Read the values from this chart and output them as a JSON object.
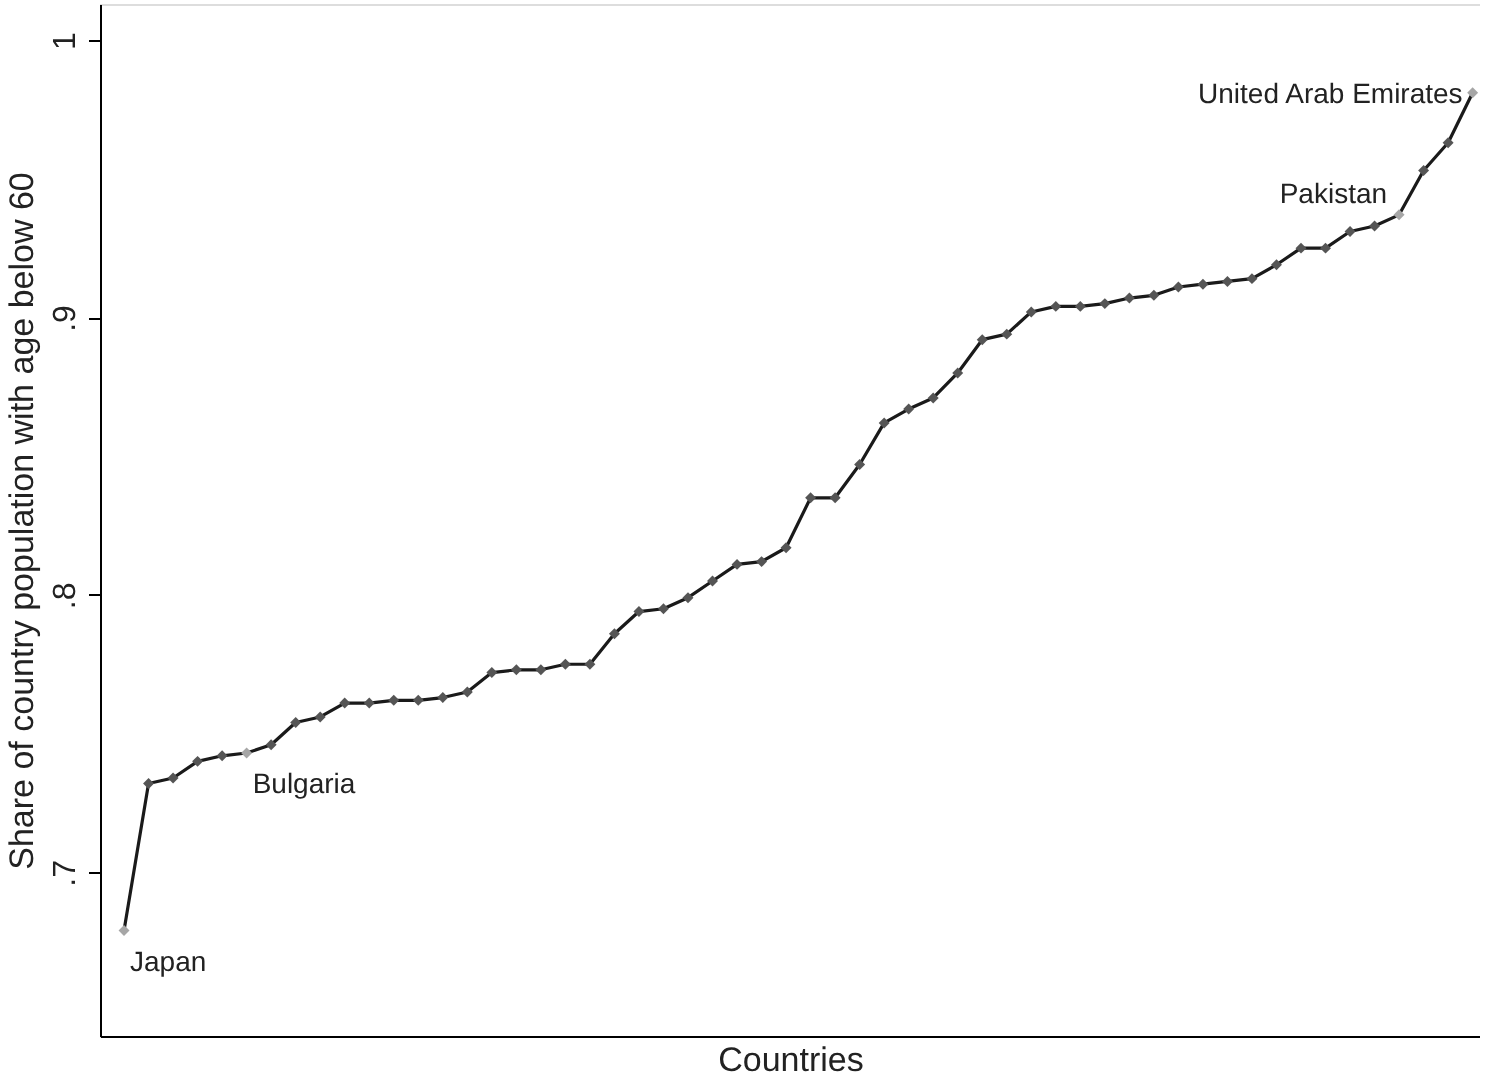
{
  "chart_data": {
    "type": "line",
    "xlabel": "Countries",
    "ylabel": "Share of country population with age below 60",
    "categories": [
      null,
      null,
      null,
      null,
      null,
      null,
      null,
      null,
      null,
      null,
      null,
      null,
      null,
      null,
      null,
      null,
      null,
      null,
      null,
      null,
      null,
      null,
      null,
      null,
      null,
      null,
      null,
      null,
      null,
      null,
      null,
      null,
      null,
      null,
      null,
      null,
      null,
      null,
      null,
      null,
      null,
      null,
      null,
      null,
      null,
      null,
      null,
      null,
      null,
      null,
      null,
      null,
      null,
      null,
      null,
      null
    ],
    "ylim": [
      0.641,
      1.013
    ],
    "yticks": [
      {
        "value": 0.7,
        "label": ".7"
      },
      {
        "value": 0.8,
        "label": ".8"
      },
      {
        "value": 0.9,
        "label": ".9"
      },
      1
    ],
    "series": [
      {
        "color": "#1a1a1a",
        "values": [
          0.679,
          0.732,
          0.734,
          0.74,
          0.742,
          0.743,
          0.746,
          0.754,
          0.756,
          0.761,
          0.761,
          0.762,
          0.762,
          0.763,
          0.765,
          0.772,
          0.773,
          0.773,
          0.775,
          0.775,
          0.786,
          0.794,
          0.795,
          0.799,
          0.805,
          0.811,
          0.812,
          0.817,
          0.835,
          0.835,
          0.847,
          0.862,
          0.867,
          0.871,
          0.88,
          0.892,
          0.894,
          0.902,
          0.904,
          0.904,
          0.905,
          0.907,
          0.908,
          0.911,
          0.912,
          0.913,
          0.914,
          0.919,
          0.925,
          0.925,
          0.931,
          0.933,
          0.937,
          0.953,
          0.963,
          0.981
        ],
        "colors": [
          "#a6a6a6",
          "#555555",
          "#555555",
          "#555555",
          "#555555",
          "#a6a6a6",
          "#555555",
          "#555555",
          "#555555",
          "#555555",
          "#555555",
          "#555555",
          "#555555",
          "#555555",
          "#555555",
          "#555555",
          "#555555",
          "#555555",
          "#555555",
          "#555555",
          "#555555",
          "#555555",
          "#555555",
          "#555555",
          "#555555",
          "#555555",
          "#555555",
          "#555555",
          "#555555",
          "#555555",
          "#555555",
          "#555555",
          "#555555",
          "#555555",
          "#555555",
          "#555555",
          "#555555",
          "#555555",
          "#555555",
          "#555555",
          "#555555",
          "#555555",
          "#555555",
          "#555555",
          "#555555",
          "#555555",
          "#555555",
          "#555555",
          "#555555",
          "#555555",
          "#555555",
          "#555555",
          "#a6a6a6",
          "#555555",
          "#555555",
          "#a6a6a6"
        ]
      }
    ],
    "annotations": [
      "Japan",
      "Bulgaria",
      "Pakistan",
      "United Arab Emirates"
    ],
    "marker": "diamond",
    "line_style": "solid",
    "grid": false,
    "tick_labels": "y"
  }
}
